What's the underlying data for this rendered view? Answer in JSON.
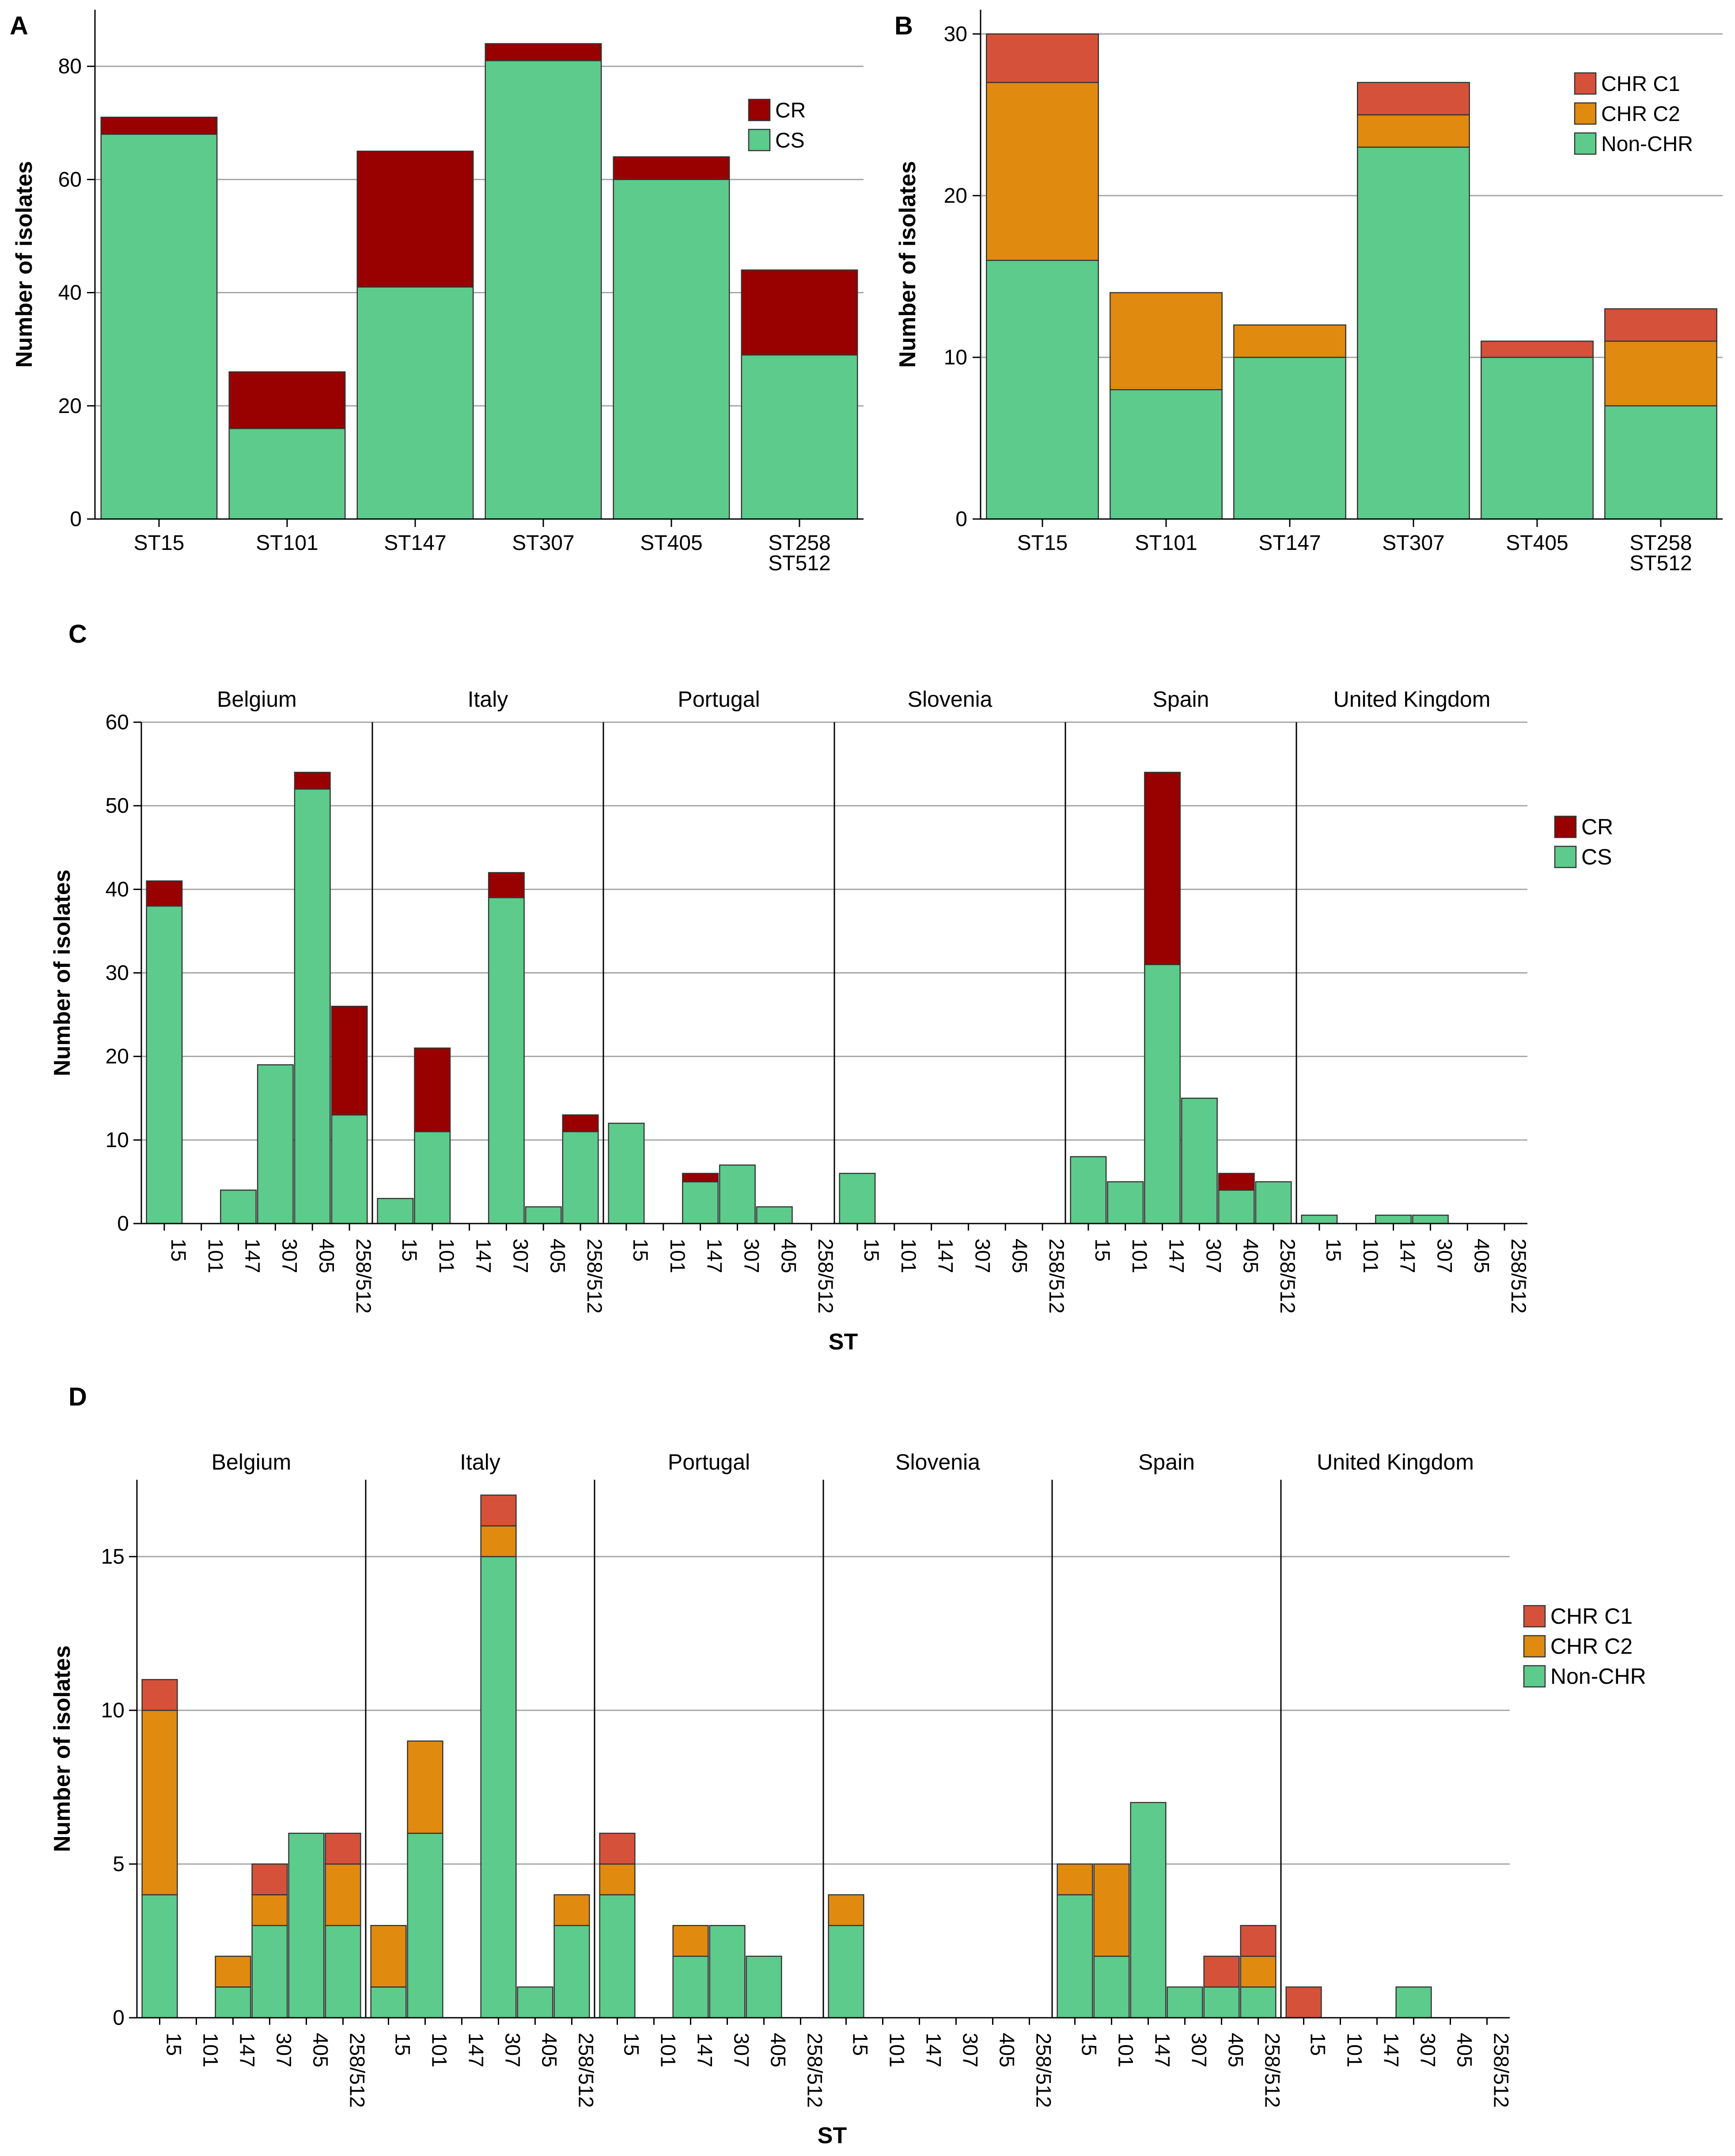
{
  "colors": {
    "CR": "#990000",
    "CS": "#5ccb8b",
    "CHR C1": "#d6513a",
    "CHR C2": "#e08a10",
    "Non-CHR": "#5ccb8b",
    "grid": "#a6a6a6",
    "axis": "#000000"
  },
  "chart_data": [
    {
      "panel": "A",
      "type": "bar",
      "stacked": true,
      "categories": [
        [
          "ST15"
        ],
        [
          "ST101"
        ],
        [
          "ST147"
        ],
        [
          "ST307"
        ],
        [
          "ST405"
        ],
        [
          "ST258",
          "ST512"
        ]
      ],
      "series": [
        {
          "name": "CS",
          "values": [
            68,
            16,
            41,
            81,
            60,
            29
          ]
        },
        {
          "name": "CR",
          "values": [
            3,
            10,
            24,
            3,
            4,
            15
          ]
        }
      ],
      "legend": [
        "CR",
        "CS"
      ],
      "legend_position": "top-right",
      "xlabel": "",
      "ylabel": "Number of isolates",
      "ylim": [
        0,
        90
      ],
      "yticks": [
        0,
        20,
        40,
        60,
        80
      ]
    },
    {
      "panel": "B",
      "type": "bar",
      "stacked": true,
      "categories": [
        [
          "ST15"
        ],
        [
          "ST101"
        ],
        [
          "ST147"
        ],
        [
          "ST307"
        ],
        [
          "ST405"
        ],
        [
          "ST258",
          "ST512"
        ]
      ],
      "series": [
        {
          "name": "Non-CHR",
          "values": [
            16,
            8,
            10,
            23,
            10,
            7
          ]
        },
        {
          "name": "CHR C2",
          "values": [
            11,
            6,
            2,
            2,
            0,
            4
          ]
        },
        {
          "name": "CHR C1",
          "values": [
            3,
            0,
            0,
            2,
            1,
            2
          ]
        }
      ],
      "legend": [
        "CHR C1",
        "CHR C2",
        "Non-CHR"
      ],
      "legend_position": "top-right",
      "xlabel": "",
      "ylabel": "Number of isolates",
      "ylim": [
        0,
        31.5
      ],
      "yticks": [
        0,
        10,
        20,
        30
      ]
    },
    {
      "panel": "C",
      "type": "bar",
      "stacked": true,
      "faceted": true,
      "facets": [
        "Belgium",
        "Italy",
        "Portugal",
        "Slovenia",
        "Spain",
        "United Kingdom"
      ],
      "categories": [
        "15",
        "101",
        "147",
        "307",
        "405",
        "258/512"
      ],
      "facet_series": {
        "Belgium": [
          {
            "name": "CS",
            "values": [
              38,
              0,
              4,
              19,
              52,
              13
            ]
          },
          {
            "name": "CR",
            "values": [
              3,
              0,
              0,
              0,
              2,
              13
            ]
          }
        ],
        "Italy": [
          {
            "name": "CS",
            "values": [
              3,
              11,
              0,
              39,
              2,
              11
            ]
          },
          {
            "name": "CR",
            "values": [
              0,
              10,
              0,
              3,
              0,
              2
            ]
          }
        ],
        "Portugal": [
          {
            "name": "CS",
            "values": [
              12,
              0,
              5,
              7,
              2,
              0
            ]
          },
          {
            "name": "CR",
            "values": [
              0,
              0,
              1,
              0,
              0,
              0
            ]
          }
        ],
        "Slovenia": [
          {
            "name": "CS",
            "values": [
              6,
              0,
              0,
              0,
              0,
              0
            ]
          },
          {
            "name": "CR",
            "values": [
              0,
              0,
              0,
              0,
              0,
              0
            ]
          }
        ],
        "Spain": [
          {
            "name": "CS",
            "values": [
              8,
              5,
              31,
              15,
              4,
              5
            ]
          },
          {
            "name": "CR",
            "values": [
              0,
              0,
              23,
              0,
              2,
              0
            ]
          }
        ],
        "United Kingdom": [
          {
            "name": "CS",
            "values": [
              1,
              0,
              1,
              1,
              0,
              0
            ]
          },
          {
            "name": "CR",
            "values": [
              0,
              0,
              0,
              0,
              0,
              0
            ]
          }
        ]
      },
      "legend": [
        "CR",
        "CS"
      ],
      "legend_position": "right",
      "xlabel": "ST",
      "ylabel": "Number of isolates",
      "ylim": [
        0,
        60
      ],
      "yticks": [
        0,
        10,
        20,
        30,
        40,
        50,
        60
      ]
    },
    {
      "panel": "D",
      "type": "bar",
      "stacked": true,
      "faceted": true,
      "facets": [
        "Belgium",
        "Italy",
        "Portugal",
        "Slovenia",
        "Spain",
        "United Kingdom"
      ],
      "categories": [
        "15",
        "101",
        "147",
        "307",
        "405",
        "258/512"
      ],
      "facet_series": {
        "Belgium": [
          {
            "name": "Non-CHR",
            "values": [
              4,
              0,
              1,
              3,
              6,
              3
            ]
          },
          {
            "name": "CHR C2",
            "values": [
              6,
              0,
              1,
              1,
              0,
              2
            ]
          },
          {
            "name": "CHR C1",
            "values": [
              1,
              0,
              0,
              1,
              0,
              1
            ]
          }
        ],
        "Italy": [
          {
            "name": "Non-CHR",
            "values": [
              1,
              6,
              0,
              15,
              1,
              3
            ]
          },
          {
            "name": "CHR C2",
            "values": [
              2,
              3,
              0,
              1,
              0,
              1
            ]
          },
          {
            "name": "CHR C1",
            "values": [
              0,
              0,
              0,
              1,
              0,
              0
            ]
          }
        ],
        "Portugal": [
          {
            "name": "Non-CHR",
            "values": [
              4,
              0,
              2,
              3,
              2,
              0
            ]
          },
          {
            "name": "CHR C2",
            "values": [
              1,
              0,
              1,
              0,
              0,
              0
            ]
          },
          {
            "name": "CHR C1",
            "values": [
              1,
              0,
              0,
              0,
              0,
              0
            ]
          }
        ],
        "Slovenia": [
          {
            "name": "Non-CHR",
            "values": [
              3,
              0,
              0,
              0,
              0,
              0
            ]
          },
          {
            "name": "CHR C2",
            "values": [
              1,
              0,
              0,
              0,
              0,
              0
            ]
          },
          {
            "name": "CHR C1",
            "values": [
              0,
              0,
              0,
              0,
              0,
              0
            ]
          }
        ],
        "Spain": [
          {
            "name": "Non-CHR",
            "values": [
              4,
              2,
              7,
              1,
              1,
              1
            ]
          },
          {
            "name": "CHR C2",
            "values": [
              1,
              3,
              0,
              0,
              0,
              1
            ]
          },
          {
            "name": "CHR C1",
            "values": [
              0,
              0,
              0,
              0,
              1,
              1
            ]
          }
        ],
        "United Kingdom": [
          {
            "name": "Non-CHR",
            "values": [
              0,
              0,
              0,
              1,
              0,
              0
            ]
          },
          {
            "name": "CHR C2",
            "values": [
              0,
              0,
              0,
              0,
              0,
              0
            ]
          },
          {
            "name": "CHR C1",
            "values": [
              1,
              0,
              0,
              0,
              0,
              0
            ]
          }
        ]
      },
      "legend": [
        "CHR C1",
        "CHR C2",
        "Non-CHR"
      ],
      "legend_position": "right",
      "xlabel": "ST",
      "ylabel": "Number of isolates",
      "ylim": [
        0,
        17.5
      ],
      "yticks": [
        0,
        5,
        10,
        15
      ]
    }
  ]
}
